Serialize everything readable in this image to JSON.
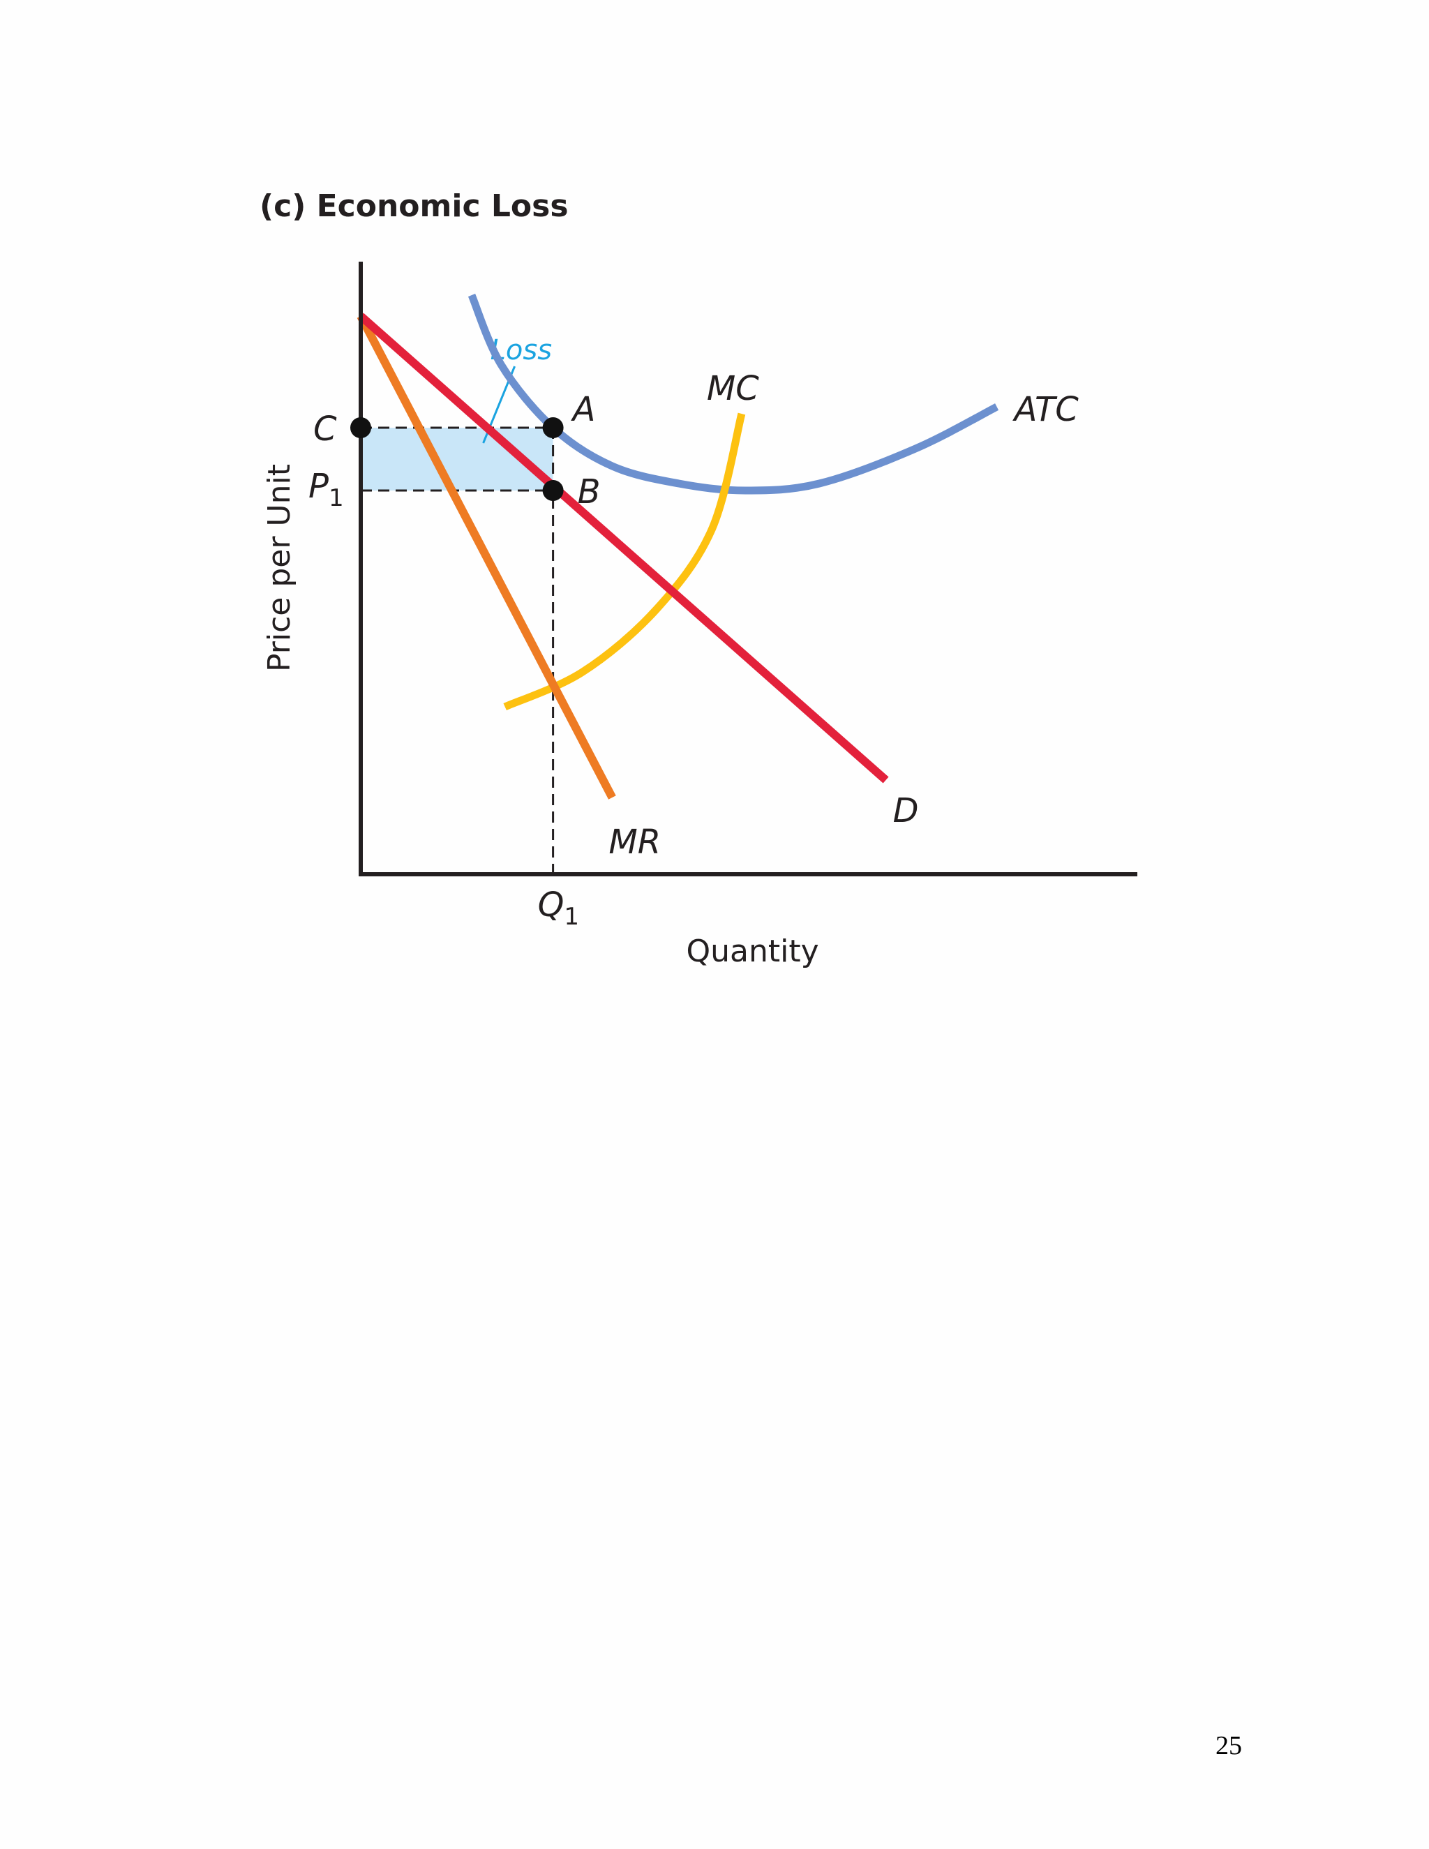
{
  "page": {
    "number": "25"
  },
  "chart_data": {
    "type": "line",
    "title": "(c) Economic Loss",
    "xlabel": "Quantity",
    "ylabel": "Price per Unit",
    "xlim": [
      0,
      11
    ],
    "ylim": [
      0,
      8.5
    ],
    "x_ticks": [
      {
        "value": 2.6,
        "label": "Q",
        "subscript": "1"
      }
    ],
    "y_ticks": [
      {
        "value": 6.4,
        "label": "C",
        "subscript": ""
      },
      {
        "value": 5.5,
        "label": "P",
        "subscript": "1"
      }
    ],
    "series": [
      {
        "name": "D",
        "color": "#e3213b",
        "points": [
          [
            0,
            8.0
          ],
          [
            7.1,
            1.35
          ]
        ]
      },
      {
        "name": "MR",
        "color": "#ee7b23",
        "points": [
          [
            0,
            8.0
          ],
          [
            3.4,
            1.1
          ]
        ]
      },
      {
        "name": "MC",
        "color": "#fdc110",
        "points": [
          [
            1.95,
            2.4
          ],
          [
            3.0,
            2.9
          ],
          [
            4.0,
            3.8
          ],
          [
            4.75,
            4.95
          ],
          [
            5.15,
            6.6
          ]
        ]
      },
      {
        "name": "ATC",
        "color": "#6c90cf",
        "points": [
          [
            1.5,
            8.3
          ],
          [
            1.9,
            7.3
          ],
          [
            2.6,
            6.4
          ],
          [
            3.4,
            5.85
          ],
          [
            4.3,
            5.6
          ],
          [
            5.2,
            5.5
          ],
          [
            6.2,
            5.6
          ],
          [
            7.5,
            6.1
          ],
          [
            8.6,
            6.7
          ]
        ]
      }
    ],
    "points": [
      {
        "label": "A",
        "x": 2.6,
        "y": 6.4
      },
      {
        "label": "B",
        "x": 2.6,
        "y": 5.5
      },
      {
        "label": "C",
        "x": 0,
        "y": 6.4
      }
    ],
    "shaded_area": {
      "label": "Loss",
      "x": [
        0,
        2.6
      ],
      "y": [
        5.5,
        6.4
      ],
      "fill": "#c9e6f8",
      "label_color": "#1aa3e0"
    },
    "grid": false
  }
}
